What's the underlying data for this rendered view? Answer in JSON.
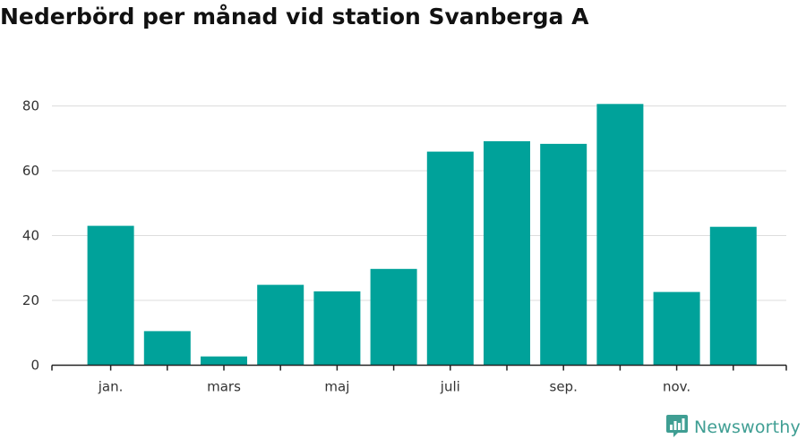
{
  "colors": {
    "bar": "#00a29a",
    "grid": "#dddddd",
    "axis": "#222222",
    "brand": "#3f9e93"
  },
  "brand": {
    "name": "Newsworthy",
    "icon": "newsworthy-logo-icon"
  },
  "chart_data": {
    "type": "bar",
    "title": "Nederbörd per månad vid station Svanberga A",
    "xlabel": "",
    "ylabel": "",
    "ylim": [
      0,
      90
    ],
    "yticks": [
      0,
      20,
      40,
      60,
      80
    ],
    "categories": [
      "jan.",
      "feb.",
      "mars",
      "apr.",
      "maj",
      "juni",
      "juli",
      "aug.",
      "sep.",
      "okt.",
      "nov.",
      "dec."
    ],
    "shown_tick_labels": [
      "jan.",
      "mars",
      "maj",
      "juli",
      "sep.",
      "nov."
    ],
    "values": [
      43,
      10.5,
      2.7,
      24.8,
      22.8,
      29.7,
      65.9,
      69.1,
      68.3,
      80.6,
      22.6,
      42.7
    ],
    "grid": true,
    "legend": "none"
  }
}
